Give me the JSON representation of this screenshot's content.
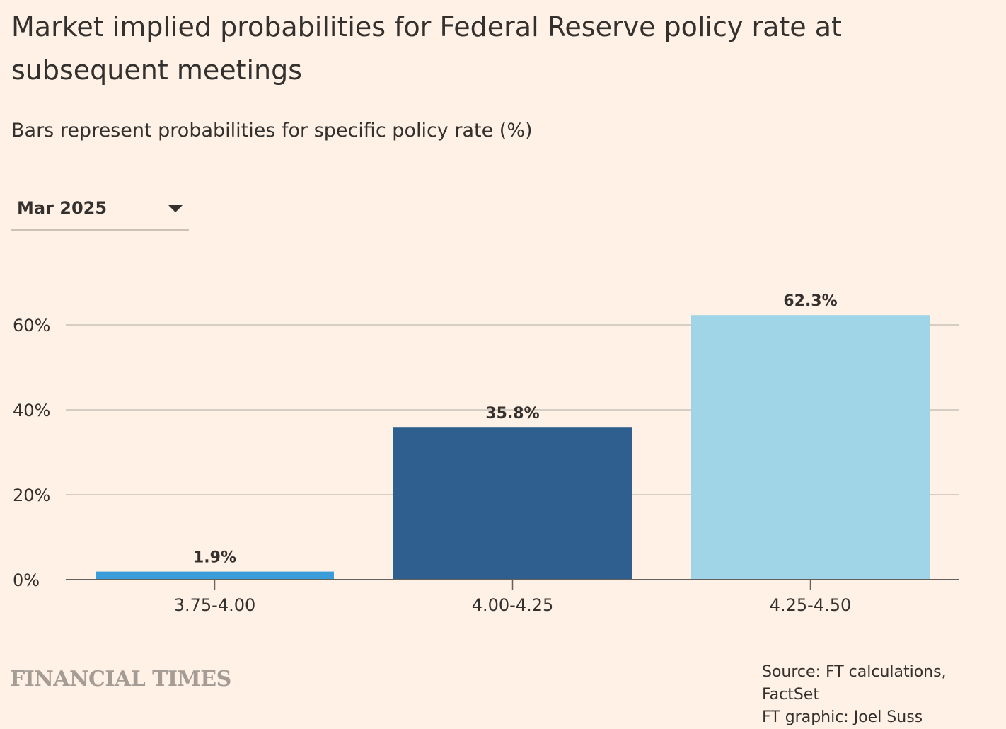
{
  "header": {
    "title": "Market implied probabilities for Federal Reserve policy rate at subsequent meetings",
    "subtitle": "Bars represent probabilities for specific policy rate (%)"
  },
  "dropdown": {
    "selected": "Mar 2025"
  },
  "chart_data": {
    "type": "bar",
    "title": "Market implied probabilities for Federal Reserve policy rate at subsequent meetings",
    "subtitle": "Bars represent probabilities for specific policy rate (%)",
    "xlabel": "",
    "ylabel": "",
    "categories": [
      "3.75-4.00",
      "4.00-4.25",
      "4.25-4.50"
    ],
    "values": [
      1.9,
      35.8,
      62.3
    ],
    "data_labels": [
      "1.9%",
      "35.8%",
      "62.3%"
    ],
    "bar_colors": [
      "#3a9cd8",
      "#2e5f8f",
      "#9fd5e6"
    ],
    "ylim": [
      0,
      65
    ],
    "yticks": [
      0,
      20,
      40,
      60
    ],
    "ytick_labels": [
      "0%",
      "20%",
      "40%",
      "60%"
    ],
    "grid": true
  },
  "footer": {
    "brand": "FINANCIAL TIMES",
    "source": "Source: FT calculations, FactSet",
    "credit": "FT graphic: Joel Suss"
  },
  "colors": {
    "background": "#fff1e5",
    "text": "#33302e",
    "gridline": "#c9c1ba",
    "axis": "#66605c"
  }
}
